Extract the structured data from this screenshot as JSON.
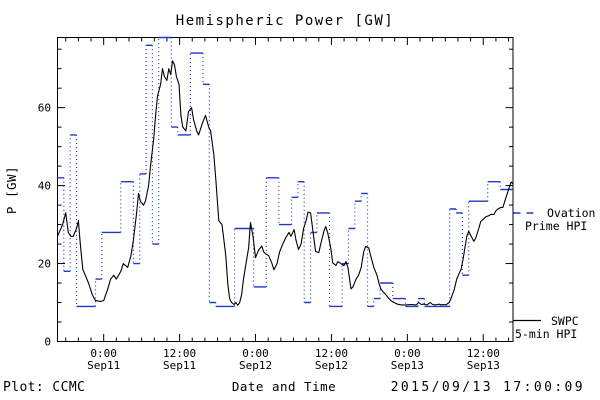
{
  "title": "Hemispheric Power [GW]",
  "footer": {
    "left": "Plot: CCMC",
    "right": "2015/09/13 17:00:09"
  },
  "chart_data": {
    "type": "line",
    "title": "Hemispheric Power [GW]",
    "xlabel": "Date and Time",
    "ylabel": "P [GW]",
    "ylim": [
      0,
      78
    ],
    "yticks": [
      0,
      20,
      40,
      60
    ],
    "y_minor_step": 5,
    "x_span_hours": 72,
    "x_start": "2015-09-10 17:00",
    "x_end": "2015-09-13 17:00",
    "x_minor_step_hours": 2,
    "grid": false,
    "legend_position": "right-outside",
    "xticks": [
      {
        "t": 7.3,
        "time": "0:00",
        "date": "Sep11"
      },
      {
        "t": 19.3,
        "time": "12:00",
        "date": "Sep11"
      },
      {
        "t": 31.3,
        "time": "0:00",
        "date": "Sep12"
      },
      {
        "t": 43.3,
        "time": "12:00",
        "date": "Sep12"
      },
      {
        "t": 55.3,
        "time": "0:00",
        "date": "Sep13"
      },
      {
        "t": 67.3,
        "time": "12:00",
        "date": "Sep13"
      }
    ],
    "series": [
      {
        "name": "Ovation Prime HPI",
        "legend_line1": "Ovation",
        "legend_line2": "Prime HPI",
        "color": "#1a3acc",
        "style": "hourly steps: solid horizontal segments, dotted vertical connectors",
        "step_hours": 1,
        "t0_hours": 0,
        "values": [
          42,
          18,
          53,
          9,
          9,
          9,
          16,
          28,
          28,
          28,
          41,
          41,
          20,
          43,
          76,
          25,
          78,
          78,
          55,
          53,
          53,
          74,
          74,
          66,
          10,
          9,
          9,
          9,
          29,
          29,
          29,
          14,
          14,
          42,
          42,
          30,
          30,
          37,
          41,
          10,
          28,
          33,
          33,
          9,
          9,
          20,
          29,
          36,
          38,
          9,
          11,
          15,
          15,
          11,
          11,
          9,
          9,
          11,
          9,
          9,
          9,
          9,
          34,
          33,
          17,
          36,
          36,
          36,
          41,
          41,
          39,
          39
        ]
      },
      {
        "name": "SWPC 5-min HPI",
        "legend_line1": "SWPC",
        "legend_line2": "5-min HPI",
        "color": "#000000",
        "style": "solid line",
        "t_hours": [
          0,
          0.8,
          1.3,
          1.7,
          2.1,
          2.5,
          3.0,
          3.3,
          3.6,
          4.0,
          4.4,
          4.9,
          5.5,
          6.0,
          6.8,
          7.3,
          7.9,
          8.4,
          8.9,
          9.3,
          10.0,
          10.4,
          11.1,
          11.6,
          12.0,
          12.5,
          12.8,
          13.1,
          13.6,
          13.9,
          14.4,
          14.7,
          15.2,
          15.5,
          15.8,
          16.3,
          16.6,
          16.9,
          17.3,
          17.6,
          17.9,
          18.2,
          18.5,
          18.8,
          19.2,
          19.5,
          19.8,
          20.3,
          20.7,
          21.2,
          21.5,
          22.0,
          22.3,
          22.9,
          23.4,
          23.9,
          24.2,
          24.7,
          25.0,
          25.5,
          26.0,
          26.3,
          26.6,
          26.9,
          27.2,
          27.5,
          27.9,
          28.2,
          28.5,
          28.8,
          29.1,
          29.4,
          29.8,
          30.2,
          30.5,
          30.9,
          31.3,
          31.8,
          32.3,
          32.6,
          32.9,
          33.4,
          33.9,
          34.2,
          34.7,
          35.1,
          35.6,
          36.1,
          36.6,
          36.9,
          37.4,
          37.7,
          38.1,
          38.5,
          38.9,
          39.3,
          39.6,
          40.0,
          40.4,
          40.8,
          41.3,
          41.6,
          42.1,
          42.4,
          42.7,
          43.2,
          43.5,
          44.0,
          44.3,
          44.8,
          45.3,
          45.6,
          45.9,
          46.4,
          46.7,
          47.2,
          47.6,
          48.0,
          48.4,
          48.7,
          49.2,
          49.5,
          50.0,
          50.5,
          50.8,
          51.1,
          51.6,
          51.9,
          52.4,
          52.7,
          53.2,
          53.7,
          54.3,
          55.1,
          55.9,
          56.7,
          57.1,
          57.5,
          57.9,
          58.4,
          58.9,
          59.3,
          59.8,
          60.3,
          60.6,
          61.1,
          61.4,
          61.9,
          62.2,
          62.7,
          63.1,
          63.5,
          63.8,
          64.1,
          64.4,
          64.7,
          65.0,
          65.4,
          65.8,
          66.1,
          66.6,
          66.9,
          67.4,
          67.7,
          68.2,
          68.5,
          69.0,
          69.3,
          69.6,
          70.1,
          70.4,
          70.7,
          71.1,
          71.4,
          71.7,
          72.0
        ],
        "values": [
          27,
          30,
          33,
          28,
          27,
          27,
          29,
          31,
          25,
          18.5,
          17,
          15,
          12,
          10.5,
          10.3,
          10.5,
          13.3,
          16,
          17,
          16,
          18,
          20,
          19,
          22,
          26,
          33,
          38,
          36,
          35,
          36,
          40,
          45,
          52,
          58,
          63,
          66,
          70,
          68,
          67,
          70,
          68.5,
          72,
          71,
          68,
          66,
          58,
          55,
          54,
          59,
          60,
          57,
          54,
          53,
          56,
          58,
          55,
          54,
          48,
          42,
          31,
          30,
          26,
          22,
          15,
          11,
          10,
          9.5,
          10,
          9.3,
          10,
          12,
          16,
          20,
          24,
          30.5,
          27,
          21.5,
          23.5,
          24.5,
          23,
          22.5,
          22,
          20,
          18.4,
          20,
          23,
          25,
          26.7,
          28,
          27,
          28.7,
          26,
          23.6,
          25,
          29,
          31,
          33.2,
          33,
          28,
          23.1,
          22.8,
          25,
          28.2,
          29.5,
          28,
          24,
          20.2,
          19.5,
          20.5,
          20,
          19.5,
          20.5,
          19,
          13.5,
          14,
          16,
          17,
          19,
          23,
          24.4,
          24,
          22,
          19,
          17,
          15,
          13.5,
          12.5,
          12,
          11,
          10.5,
          10,
          9.6,
          9.4,
          9.4,
          9.5,
          9.4,
          10,
          9.5,
          9.6,
          9.4,
          10,
          9.5,
          9.4,
          9.6,
          9.4,
          9.5,
          9.4,
          10,
          11,
          13.3,
          16,
          17.5,
          18.5,
          21,
          24,
          27,
          28.3,
          27,
          25.7,
          26.5,
          29,
          30.8,
          31.5,
          32,
          32.3,
          32.6,
          32.6,
          33.5,
          34,
          34.4,
          34.4,
          36,
          38,
          39.5,
          40.9,
          40.5
        ]
      }
    ]
  }
}
